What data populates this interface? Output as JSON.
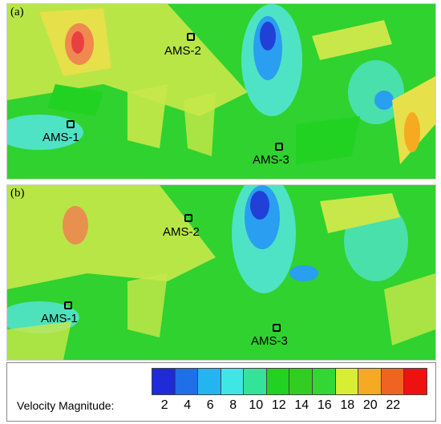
{
  "panels": [
    {
      "label": "(a)",
      "stations": [
        "AMS-1",
        "AMS-2",
        "AMS-3"
      ]
    },
    {
      "label": "(b)",
      "stations": [
        "AMS-1",
        "AMS-2",
        "AMS-3"
      ]
    }
  ],
  "legend": {
    "title": "Velocity Magnitude:",
    "ticks": [
      "2",
      "4",
      "6",
      "8",
      "10",
      "12",
      "14",
      "16",
      "18",
      "20",
      "22"
    ],
    "colors": [
      "#1f2bd6",
      "#1f6fe8",
      "#22b5ef",
      "#3fe6e6",
      "#33e39a",
      "#22d222",
      "#33cc22",
      "#33d633",
      "#d8ee33",
      "#f5aa22",
      "#f06422",
      "#ee1111"
    ]
  },
  "colors": {
    "green": "#2fd22f",
    "yellow_green": "#c8e84a",
    "cyan": "#55e6e0",
    "blue": "#2040d8",
    "orange": "#f08050"
  }
}
